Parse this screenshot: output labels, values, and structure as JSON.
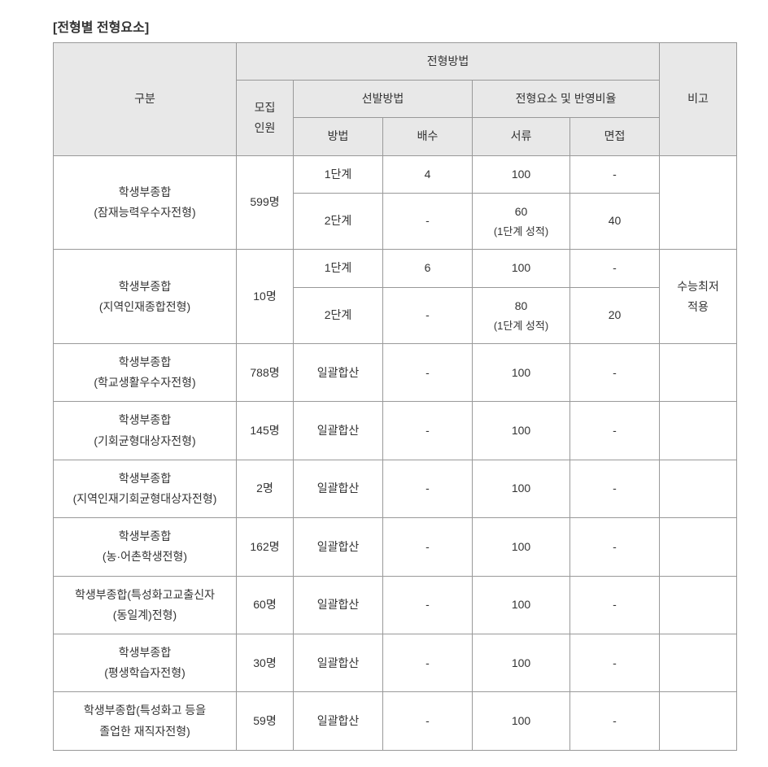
{
  "title": "[전형별 전형요소]",
  "headers": {
    "category": "구분",
    "selection_method": "전형방법",
    "quota": "모집\n인원",
    "selection": "선발방법",
    "method": "방법",
    "multiplier": "배수",
    "element_ratio": "전형요소 및 반영비율",
    "documents": "서류",
    "interview": "면접",
    "remark": "비고"
  },
  "rows": [
    {
      "category_line1": "학생부종합",
      "category_line2": "(잠재능력우수자전형)",
      "quota": "599명",
      "stages": [
        {
          "method": "1단계",
          "multiplier": "4",
          "documents": "100",
          "interview": "-"
        },
        {
          "method": "2단계",
          "multiplier": "-",
          "documents_line1": "60",
          "documents_line2": "(1단계 성적)",
          "interview": "40"
        }
      ],
      "remark": ""
    },
    {
      "category_line1": "학생부종합",
      "category_line2": "(지역인재종합전형)",
      "quota": "10명",
      "stages": [
        {
          "method": "1단계",
          "multiplier": "6",
          "documents": "100",
          "interview": "-"
        },
        {
          "method": "2단계",
          "multiplier": "-",
          "documents_line1": "80",
          "documents_line2": "(1단계 성적)",
          "interview": "20"
        }
      ],
      "remark_line1": "수능최저",
      "remark_line2": "적용"
    },
    {
      "category_line1": "학생부종합",
      "category_line2": "(학교생활우수자전형)",
      "quota": "788명",
      "method": "일괄합산",
      "multiplier": "-",
      "documents": "100",
      "interview": "-",
      "remark": ""
    },
    {
      "category_line1": "학생부종합",
      "category_line2": "(기회균형대상자전형)",
      "quota": "145명",
      "method": "일괄합산",
      "multiplier": "-",
      "documents": "100",
      "interview": "-",
      "remark": ""
    },
    {
      "category_line1": "학생부종합",
      "category_line2": "(지역인재기회균형대상자전형)",
      "quota": "2명",
      "method": "일괄합산",
      "multiplier": "-",
      "documents": "100",
      "interview": "-",
      "remark": ""
    },
    {
      "category_line1": "학생부종합",
      "category_line2": "(농·어촌학생전형)",
      "quota": "162명",
      "method": "일괄합산",
      "multiplier": "-",
      "documents": "100",
      "interview": "-",
      "remark": ""
    },
    {
      "category_line1": "학생부종합(특성화고교출신자",
      "category_line2": "(동일계)전형)",
      "quota": "60명",
      "method": "일괄합산",
      "multiplier": "-",
      "documents": "100",
      "interview": "-",
      "remark": ""
    },
    {
      "category_line1": "학생부종합",
      "category_line2": "(평생학습자전형)",
      "quota": "30명",
      "method": "일괄합산",
      "multiplier": "-",
      "documents": "100",
      "interview": "-",
      "remark": ""
    },
    {
      "category_line1": "학생부종합(특성화고 등을",
      "category_line2": "졸업한 재직자전형)",
      "quota": "59명",
      "method": "일괄합산",
      "multiplier": "-",
      "documents": "100",
      "interview": "-",
      "remark": ""
    }
  ],
  "style": {
    "header_bg": "#e8e8e8",
    "border_color": "#999999",
    "text_color": "#333333",
    "font_size": 14,
    "title_font_size": 16,
    "background": "#ffffff"
  }
}
